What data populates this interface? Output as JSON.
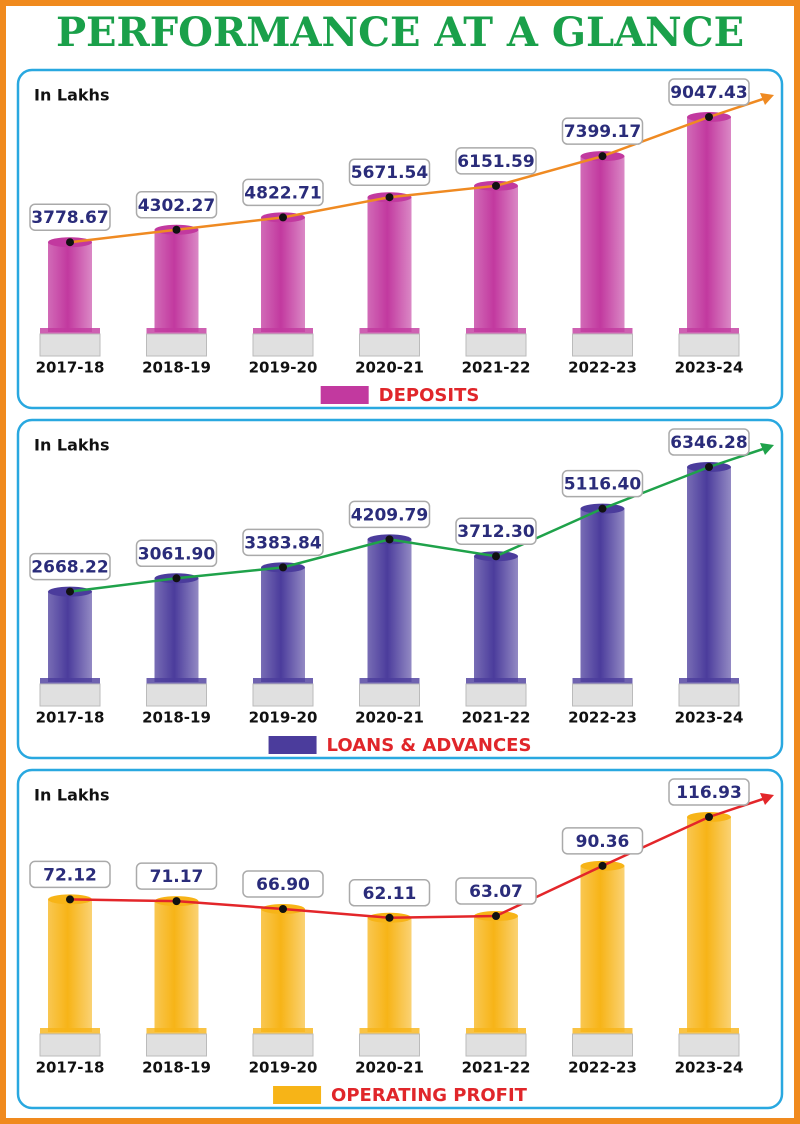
{
  "title": "PERFORMANCE AT A GLANCE",
  "chart_data": [
    {
      "type": "bar",
      "y_label": "In Lakhs",
      "legend": "bottom",
      "line_color": "#ef8a22",
      "categories": [
        "2017-18",
        "2018-19",
        "2019-20",
        "2020-21",
        "2021-22",
        "2022-23",
        "2023-24"
      ],
      "series": [
        {
          "name": "DEPOSITS",
          "color": "#c2399f",
          "values": [
            3778.67,
            4302.27,
            4822.71,
            5671.54,
            6151.59,
            7399.17,
            9047.43
          ],
          "value_labels": [
            "3778.67",
            "4302.27",
            "4822.71",
            "5671.54",
            "6151.59",
            "7399.17",
            "9047.43"
          ]
        }
      ]
    },
    {
      "type": "bar",
      "y_label": "In Lakhs",
      "legend": "bottom",
      "line_color": "#1fa24a",
      "categories": [
        "2017-18",
        "2018-19",
        "2019-20",
        "2020-21",
        "2021-22",
        "2022-23",
        "2023-24"
      ],
      "series": [
        {
          "name": "LOANS & ADVANCES",
          "color": "#4b3c9c",
          "values": [
            2668.22,
            3061.9,
            3383.84,
            4209.79,
            3712.3,
            5116.4,
            6346.28
          ],
          "value_labels": [
            "2668.22",
            "3061.90",
            "3383.84",
            "4209.79",
            "3712.30",
            "5116.40",
            "6346.28"
          ]
        }
      ]
    },
    {
      "type": "bar",
      "y_label": "In Lakhs",
      "legend": "bottom",
      "line_color": "#e3262a",
      "categories": [
        "2017-18",
        "2018-19",
        "2019-20",
        "2020-21",
        "2021-22",
        "2022-23",
        "2023-24"
      ],
      "series": [
        {
          "name": "OPERATING PROFIT",
          "color": "#f7b417",
          "values": [
            72.12,
            71.17,
            66.9,
            62.11,
            63.07,
            90.36,
            116.93
          ],
          "value_labels": [
            "72.12",
            "71.17",
            "66.90",
            "62.11",
            "63.07",
            "90.36",
            "116.93"
          ]
        }
      ]
    }
  ]
}
